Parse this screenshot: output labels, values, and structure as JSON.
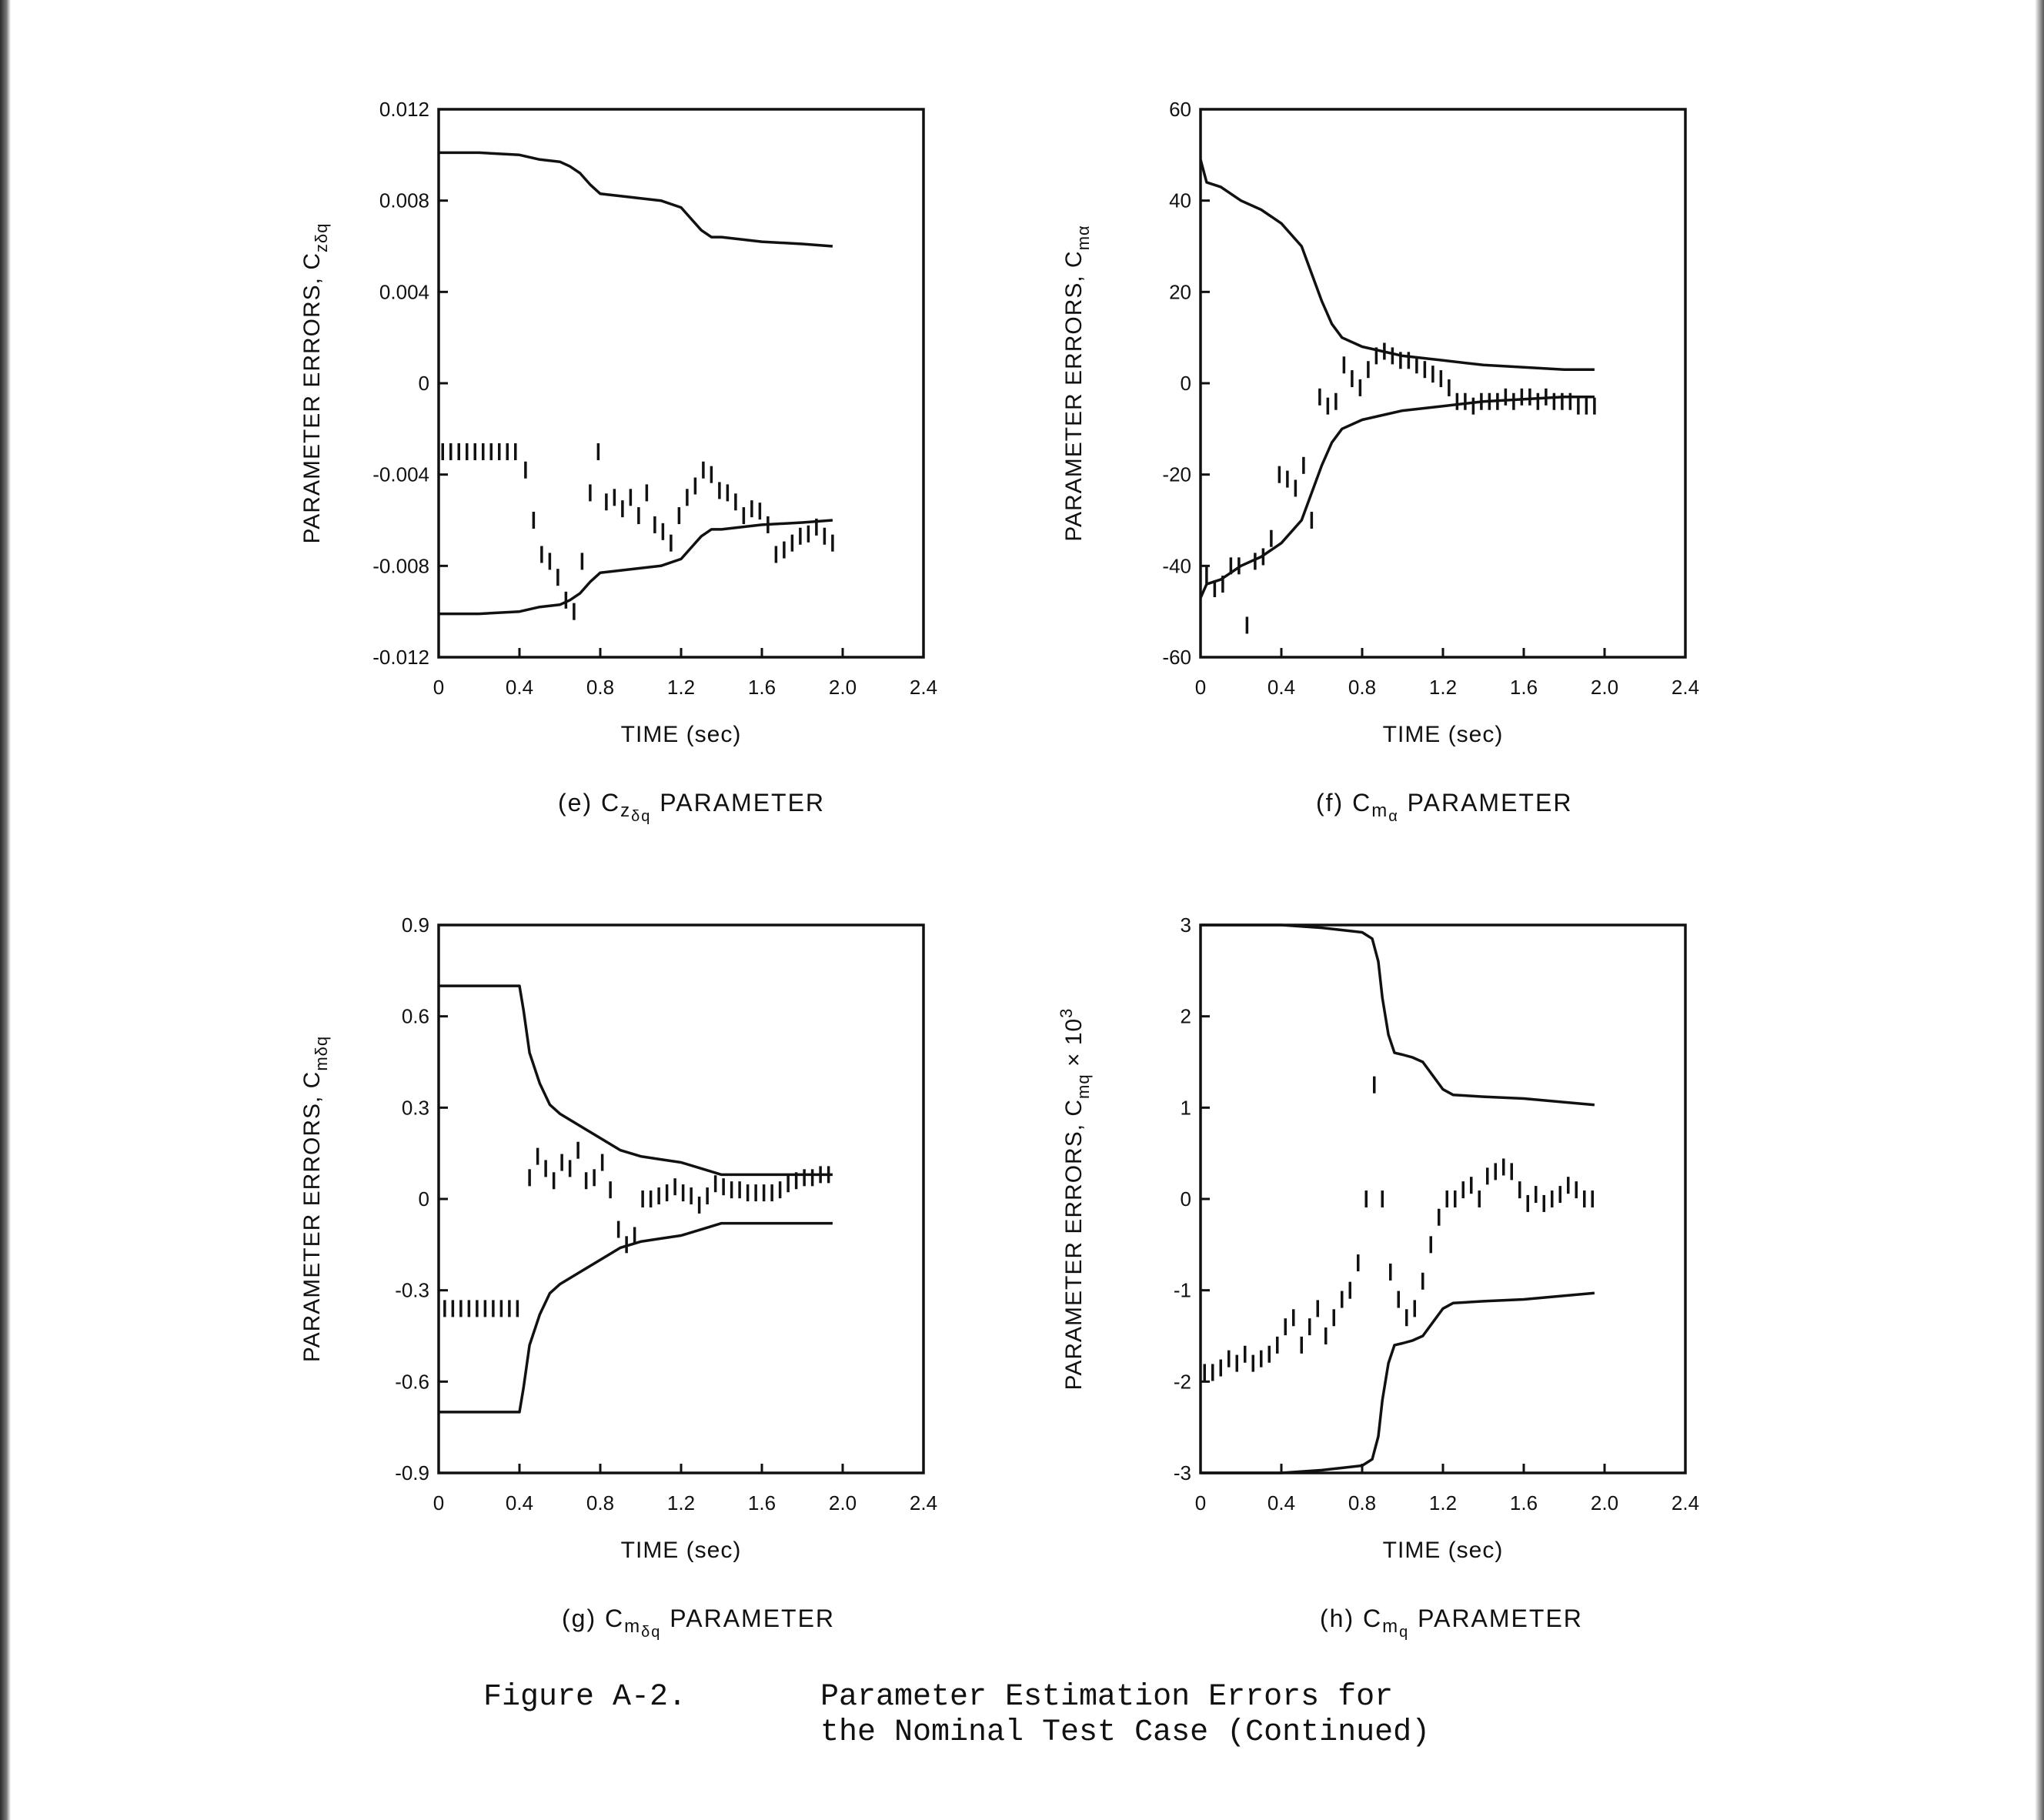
{
  "figure": {
    "number": "Figure A-2.",
    "title_line1": "Parameter Estimation Errors for",
    "title_line2": "the Nominal Test Case (Continued)"
  },
  "chart_data": [
    {
      "type": "line",
      "panel": "e",
      "caption": {
        "prefix": "(e) C",
        "sub": "z",
        "subsub": "δq",
        "suffix": " PARAMETER"
      },
      "ylabel": {
        "text": "PARAMETER ERRORS, C",
        "sub": "zδq"
      },
      "xlabel": "TIME (sec)",
      "xlim": [
        0,
        2.4
      ],
      "ylim": [
        -0.012,
        0.012
      ],
      "x_ticks": [
        "0",
        "0.4",
        "0.8",
        "1.2",
        "1.6",
        "2.0",
        "2.4"
      ],
      "y_ticks": [
        "0.012",
        "0.008",
        "0.004",
        "0",
        "-0.004",
        "-0.008",
        "-0.012"
      ],
      "series": [
        {
          "style": "solid",
          "x": [
            0,
            0.2,
            0.4,
            0.5,
            0.6,
            0.65,
            0.7,
            0.75,
            0.8,
            0.9,
            1.0,
            1.1,
            1.2,
            1.25,
            1.3,
            1.35,
            1.4,
            1.6,
            1.8,
            1.95
          ],
          "y": [
            0.0101,
            0.0101,
            0.01,
            0.0098,
            0.0097,
            0.0095,
            0.0092,
            0.0087,
            0.0083,
            0.0082,
            0.0081,
            0.008,
            0.0077,
            0.0072,
            0.0067,
            0.0064,
            0.0064,
            0.0062,
            0.0061,
            0.006
          ]
        },
        {
          "style": "solid",
          "x": [
            0,
            0.2,
            0.4,
            0.5,
            0.6,
            0.65,
            0.7,
            0.75,
            0.8,
            0.9,
            1.0,
            1.1,
            1.2,
            1.25,
            1.3,
            1.35,
            1.4,
            1.6,
            1.8,
            1.95
          ],
          "y": [
            -0.0101,
            -0.0101,
            -0.01,
            -0.0098,
            -0.0097,
            -0.0095,
            -0.0092,
            -0.0087,
            -0.0083,
            -0.0082,
            -0.0081,
            -0.008,
            -0.0077,
            -0.0072,
            -0.0067,
            -0.0064,
            -0.0064,
            -0.0062,
            -0.0061,
            -0.006
          ]
        },
        {
          "style": "ticks",
          "x": [
            0.02,
            0.06,
            0.1,
            0.14,
            0.18,
            0.22,
            0.26,
            0.3,
            0.34,
            0.38,
            0.43,
            0.47,
            0.51,
            0.55,
            0.59,
            0.63,
            0.67,
            0.71,
            0.75,
            0.79,
            0.83,
            0.87,
            0.91,
            0.95,
            0.99,
            1.03,
            1.07,
            1.11,
            1.15,
            1.19,
            1.23,
            1.27,
            1.31,
            1.35,
            1.39,
            1.43,
            1.47,
            1.51,
            1.55,
            1.59,
            1.63,
            1.67,
            1.71,
            1.75,
            1.79,
            1.83,
            1.87,
            1.91,
            1.95
          ],
          "y": [
            -0.003,
            -0.003,
            -0.003,
            -0.003,
            -0.003,
            -0.003,
            -0.003,
            -0.003,
            -0.003,
            -0.003,
            -0.0038,
            -0.006,
            -0.0075,
            -0.0078,
            -0.0085,
            -0.0095,
            -0.01,
            -0.0078,
            -0.0048,
            -0.003,
            -0.0052,
            -0.005,
            -0.0055,
            -0.005,
            -0.0058,
            -0.0048,
            -0.0062,
            -0.0065,
            -0.007,
            -0.0058,
            -0.005,
            -0.0045,
            -0.0038,
            -0.004,
            -0.0047,
            -0.0048,
            -0.0052,
            -0.0058,
            -0.0055,
            -0.0056,
            -0.0062,
            -0.0075,
            -0.0073,
            -0.007,
            -0.0067,
            -0.0066,
            -0.0063,
            -0.0067,
            -0.007
          ]
        }
      ]
    },
    {
      "type": "line",
      "panel": "f",
      "caption": {
        "prefix": "(f) C",
        "sub": "m",
        "subsub": "α",
        "suffix": " PARAMETER"
      },
      "ylabel": {
        "text": "PARAMETER ERRORS, C",
        "sub": "mα"
      },
      "xlabel": "TIME (sec)",
      "xlim": [
        0,
        2.4
      ],
      "ylim": [
        -60,
        60
      ],
      "x_ticks": [
        "0",
        "0.4",
        "0.8",
        "1.2",
        "1.6",
        "2.0",
        "2.4"
      ],
      "y_ticks": [
        "60",
        "40",
        "20",
        "0",
        "-20",
        "-40",
        "-60"
      ],
      "series": [
        {
          "style": "solid",
          "x": [
            0,
            0.03,
            0.1,
            0.2,
            0.3,
            0.4,
            0.5,
            0.55,
            0.6,
            0.65,
            0.7,
            0.8,
            0.9,
            1.0,
            1.2,
            1.4,
            1.6,
            1.8,
            1.95
          ],
          "y": [
            49,
            44,
            43,
            40,
            38,
            35,
            30,
            24,
            18,
            13,
            10,
            8,
            7,
            6,
            5,
            4,
            3.5,
            3,
            3
          ]
        },
        {
          "style": "solid",
          "x": [
            0,
            0.03,
            0.1,
            0.2,
            0.3,
            0.4,
            0.5,
            0.55,
            0.6,
            0.65,
            0.7,
            0.8,
            0.9,
            1.0,
            1.2,
            1.4,
            1.6,
            1.8,
            1.95
          ],
          "y": [
            -47,
            -44,
            -43,
            -40,
            -38,
            -35,
            -30,
            -24,
            -18,
            -13,
            -10,
            -8,
            -7,
            -6,
            -5,
            -4,
            -3.5,
            -3,
            -3
          ]
        },
        {
          "style": "ticks",
          "x": [
            0.03,
            0.07,
            0.11,
            0.15,
            0.19,
            0.23,
            0.27,
            0.31,
            0.35,
            0.39,
            0.43,
            0.47,
            0.51,
            0.55,
            0.59,
            0.63,
            0.67,
            0.71,
            0.75,
            0.79,
            0.83,
            0.87,
            0.91,
            0.95,
            0.99,
            1.03,
            1.07,
            1.11,
            1.15,
            1.19,
            1.23,
            1.27,
            1.31,
            1.35,
            1.39,
            1.43,
            1.47,
            1.51,
            1.55,
            1.59,
            1.63,
            1.67,
            1.71,
            1.75,
            1.79,
            1.83,
            1.87,
            1.91,
            1.95
          ],
          "y": [
            -42,
            -45,
            -44,
            -40,
            -40,
            -53,
            -39,
            -38,
            -34,
            -20,
            -21,
            -23,
            -18,
            -30,
            -3,
            -5,
            -4,
            4,
            1,
            -1,
            3,
            6,
            7,
            6,
            5,
            5,
            4,
            3,
            2,
            1,
            -1,
            -4,
            -4,
            -5,
            -4,
            -4,
            -4,
            -3,
            -4,
            -3,
            -3,
            -4,
            -3,
            -4,
            -4,
            -4,
            -5,
            -5,
            -5
          ]
        }
      ]
    },
    {
      "type": "line",
      "panel": "g",
      "caption": {
        "prefix": "(g) C",
        "sub": "m",
        "subsub": "δq",
        "suffix": " PARAMETER"
      },
      "ylabel": {
        "text": "PARAMETER ERRORS, C",
        "sub": "mδq"
      },
      "xlabel": "TIME (sec)",
      "xlim": [
        0,
        2.4
      ],
      "ylim": [
        -0.9,
        0.9
      ],
      "x_ticks": [
        "0",
        "0.4",
        "0.8",
        "1.2",
        "1.6",
        "2.0",
        "2.4"
      ],
      "y_ticks": [
        "0.9",
        "0.6",
        "0.3",
        "0",
        "-0.3",
        "-0.6",
        "-0.9"
      ],
      "series": [
        {
          "style": "solid",
          "x": [
            0,
            0.2,
            0.4,
            0.42,
            0.45,
            0.5,
            0.55,
            0.6,
            0.7,
            0.8,
            0.9,
            1.0,
            1.1,
            1.2,
            1.3,
            1.4,
            1.6,
            1.8,
            1.95
          ],
          "y": [
            0.7,
            0.7,
            0.7,
            0.62,
            0.48,
            0.38,
            0.31,
            0.28,
            0.24,
            0.2,
            0.16,
            0.14,
            0.13,
            0.12,
            0.1,
            0.08,
            0.08,
            0.08,
            0.08
          ]
        },
        {
          "style": "solid",
          "x": [
            0,
            0.2,
            0.4,
            0.42,
            0.45,
            0.5,
            0.55,
            0.6,
            0.7,
            0.8,
            0.9,
            1.0,
            1.1,
            1.2,
            1.3,
            1.4,
            1.6,
            1.8,
            1.95
          ],
          "y": [
            -0.7,
            -0.7,
            -0.7,
            -0.62,
            -0.48,
            -0.38,
            -0.31,
            -0.28,
            -0.24,
            -0.2,
            -0.16,
            -0.14,
            -0.13,
            -0.12,
            -0.1,
            -0.08,
            -0.08,
            -0.08,
            -0.08
          ]
        },
        {
          "style": "ticks",
          "x": [
            0.03,
            0.07,
            0.11,
            0.15,
            0.19,
            0.23,
            0.27,
            0.31,
            0.35,
            0.39,
            0.45,
            0.49,
            0.53,
            0.57,
            0.61,
            0.65,
            0.69,
            0.73,
            0.77,
            0.81,
            0.85,
            0.89,
            0.93,
            0.97,
            1.01,
            1.05,
            1.09,
            1.13,
            1.17,
            1.21,
            1.25,
            1.29,
            1.33,
            1.37,
            1.41,
            1.45,
            1.49,
            1.53,
            1.57,
            1.61,
            1.65,
            1.69,
            1.73,
            1.77,
            1.81,
            1.85,
            1.89,
            1.93
          ],
          "y": [
            -0.36,
            -0.36,
            -0.36,
            -0.36,
            -0.36,
            -0.36,
            -0.36,
            -0.36,
            -0.36,
            -0.36,
            0.07,
            0.14,
            0.1,
            0.06,
            0.12,
            0.1,
            0.16,
            0.06,
            0.07,
            0.12,
            0.03,
            -0.1,
            -0.15,
            -0.12,
            0.0,
            0.0,
            0.01,
            0.02,
            0.04,
            0.02,
            0.01,
            -0.02,
            0.01,
            0.05,
            0.04,
            0.03,
            0.03,
            0.02,
            0.02,
            0.02,
            0.02,
            0.03,
            0.05,
            0.06,
            0.07,
            0.07,
            0.08,
            0.08
          ]
        }
      ]
    },
    {
      "type": "line",
      "panel": "h",
      "caption": {
        "prefix": "(h) C",
        "sub": "m",
        "subsub": "q",
        "suffix": " PARAMETER"
      },
      "ylabel": {
        "text": "PARAMETER ERRORS, C",
        "sub": "mq",
        "suffix": " × 10",
        "sup": "3"
      },
      "xlabel": "TIME (sec)",
      "xlim": [
        0,
        2.4
      ],
      "ylim": [
        -3,
        3
      ],
      "x_ticks": [
        "0",
        "0.4",
        "0.8",
        "1.2",
        "1.6",
        "2.0",
        "2.4"
      ],
      "y_ticks": [
        "3",
        "2",
        "1",
        "0",
        "-1",
        "-2",
        "-3"
      ],
      "series": [
        {
          "style": "solid",
          "x": [
            0,
            0.4,
            0.6,
            0.8,
            0.85,
            0.88,
            0.9,
            0.93,
            0.96,
            1.0,
            1.05,
            1.1,
            1.15,
            1.2,
            1.25,
            1.4,
            1.6,
            1.8,
            1.95
          ],
          "y": [
            3.0,
            3.0,
            2.97,
            2.92,
            2.85,
            2.6,
            2.2,
            1.8,
            1.6,
            1.58,
            1.55,
            1.5,
            1.35,
            1.2,
            1.14,
            1.12,
            1.1,
            1.06,
            1.03
          ]
        },
        {
          "style": "solid",
          "x": [
            0,
            0.4,
            0.6,
            0.8,
            0.85,
            0.88,
            0.9,
            0.93,
            0.96,
            1.0,
            1.05,
            1.1,
            1.15,
            1.2,
            1.25,
            1.4,
            1.6,
            1.8,
            1.95
          ],
          "y": [
            -3.0,
            -3.0,
            -2.97,
            -2.92,
            -2.85,
            -2.6,
            -2.2,
            -1.8,
            -1.6,
            -1.58,
            -1.55,
            -1.5,
            -1.35,
            -1.2,
            -1.14,
            -1.12,
            -1.1,
            -1.06,
            -1.03
          ]
        },
        {
          "style": "ticks",
          "x": [
            0.02,
            0.06,
            0.1,
            0.14,
            0.18,
            0.22,
            0.26,
            0.3,
            0.34,
            0.38,
            0.42,
            0.46,
            0.5,
            0.54,
            0.58,
            0.62,
            0.66,
            0.7,
            0.74,
            0.78,
            0.82,
            0.86,
            0.9,
            0.94,
            0.98,
            1.02,
            1.06,
            1.1,
            1.14,
            1.18,
            1.22,
            1.26,
            1.3,
            1.34,
            1.38,
            1.42,
            1.46,
            1.5,
            1.54,
            1.58,
            1.62,
            1.66,
            1.7,
            1.74,
            1.78,
            1.82,
            1.86,
            1.9,
            1.94
          ],
          "y": [
            -1.9,
            -1.9,
            -1.85,
            -1.75,
            -1.8,
            -1.7,
            -1.8,
            -1.75,
            -1.7,
            -1.6,
            -1.4,
            -1.3,
            -1.6,
            -1.4,
            -1.2,
            -1.5,
            -1.3,
            -1.1,
            -1.0,
            -0.7,
            0.0,
            1.25,
            0.0,
            -0.8,
            -1.1,
            -1.3,
            -1.2,
            -0.9,
            -0.5,
            -0.2,
            0.0,
            0.0,
            0.1,
            0.15,
            0.0,
            0.25,
            0.3,
            0.35,
            0.3,
            0.1,
            -0.05,
            0.05,
            -0.05,
            0.0,
            0.05,
            0.15,
            0.1,
            0.0,
            0.0
          ]
        }
      ]
    }
  ]
}
